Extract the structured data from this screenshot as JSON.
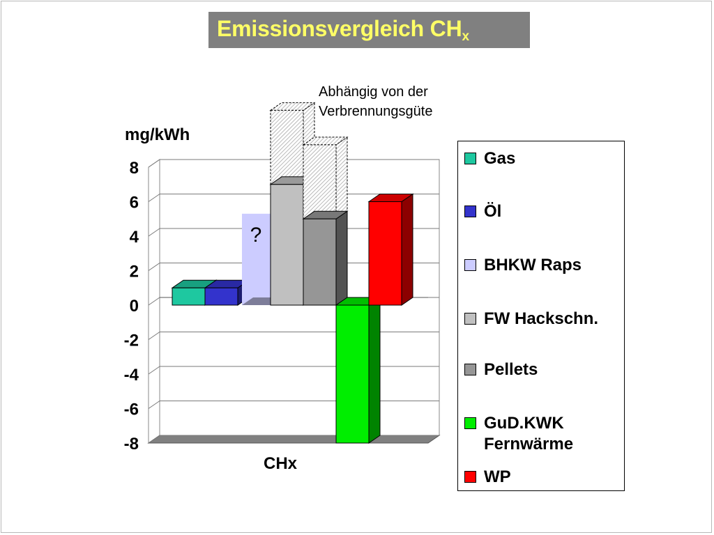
{
  "title": {
    "main": "Emissionsvergleich CH",
    "subscript": "x"
  },
  "annotation": {
    "line1": "Abhängig von der",
    "line2": "Verbrennungsgüte"
  },
  "question_mark": "?",
  "colors": {
    "title_bg": "#808080",
    "title_text": "#ffff66"
  },
  "chart_data": {
    "type": "bar",
    "title": "Emissionsvergleich CHx",
    "ylabel": "mg/kWh",
    "xlabel": "",
    "categories": [
      "CHx"
    ],
    "ylim": [
      -8,
      8
    ],
    "yticks": [
      8,
      6,
      4,
      2,
      0,
      -2,
      -4,
      -6,
      -8
    ],
    "grid": true,
    "legend_position": "right",
    "style": "3d-clustered",
    "series": [
      {
        "name": "Gas",
        "values": [
          1.0
        ],
        "color": "#1ec8a0"
      },
      {
        "name": "Öl",
        "values": [
          1.0
        ],
        "color": "#3333cc"
      },
      {
        "name": "BHKW Raps",
        "values": [
          5.3
        ],
        "color": "#ccccff",
        "uncertain": true,
        "note": "?"
      },
      {
        "name": "FW Hackschn.",
        "values": [
          7.0
        ],
        "color": "#c0c0c0",
        "range_upper": [
          11.3
        ]
      },
      {
        "name": "Pellets",
        "values": [
          5.0
        ],
        "color": "#969696",
        "range_upper": [
          9.3
        ]
      },
      {
        "name": "GuD.KWK Fernwärme",
        "values": [
          -8.0
        ],
        "color": "#00ee00"
      },
      {
        "name": "WP",
        "values": [
          6.0
        ],
        "color": "#ff0000"
      }
    ]
  },
  "legend": [
    {
      "label_lines": [
        "Gas"
      ],
      "color": "#1ec8a0"
    },
    {
      "label_lines": [
        "Öl"
      ],
      "color": "#3333cc"
    },
    {
      "label_lines": [
        "BHKW Raps"
      ],
      "color": "#ccccff"
    },
    {
      "label_lines": [
        "FW Hackschn."
      ],
      "color": "#c0c0c0"
    },
    {
      "label_lines": [
        "Pellets"
      ],
      "color": "#969696"
    },
    {
      "label_lines": [
        "GuD.KWK",
        "Fernwärme"
      ],
      "color": "#00ee00"
    },
    {
      "label_lines": [
        "WP"
      ],
      "color": "#ff0000"
    }
  ]
}
